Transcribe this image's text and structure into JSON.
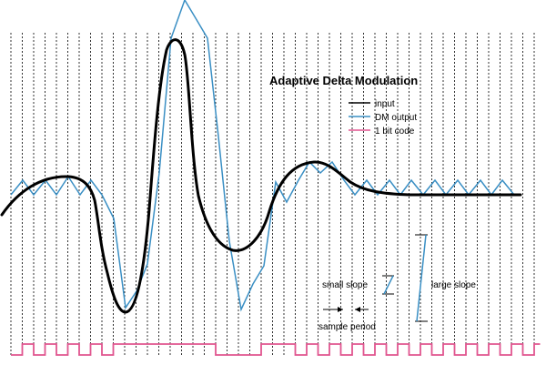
{
  "title": "Adaptive Delta Modulation",
  "legend": [
    {
      "key": "input",
      "label": "input",
      "color": "#000000"
    },
    {
      "key": "dm",
      "label": "DM output",
      "color": "#3a8fc4"
    },
    {
      "key": "code",
      "label": "1 bit code",
      "color": "#e0558f"
    }
  ],
  "annotations": {
    "small_slope": "small slope",
    "large_slope": "large slope",
    "sample_period": "sample period"
  },
  "colors": {
    "input": "#000000",
    "dm": "#3a8fc4",
    "code": "#e0558f"
  }
}
